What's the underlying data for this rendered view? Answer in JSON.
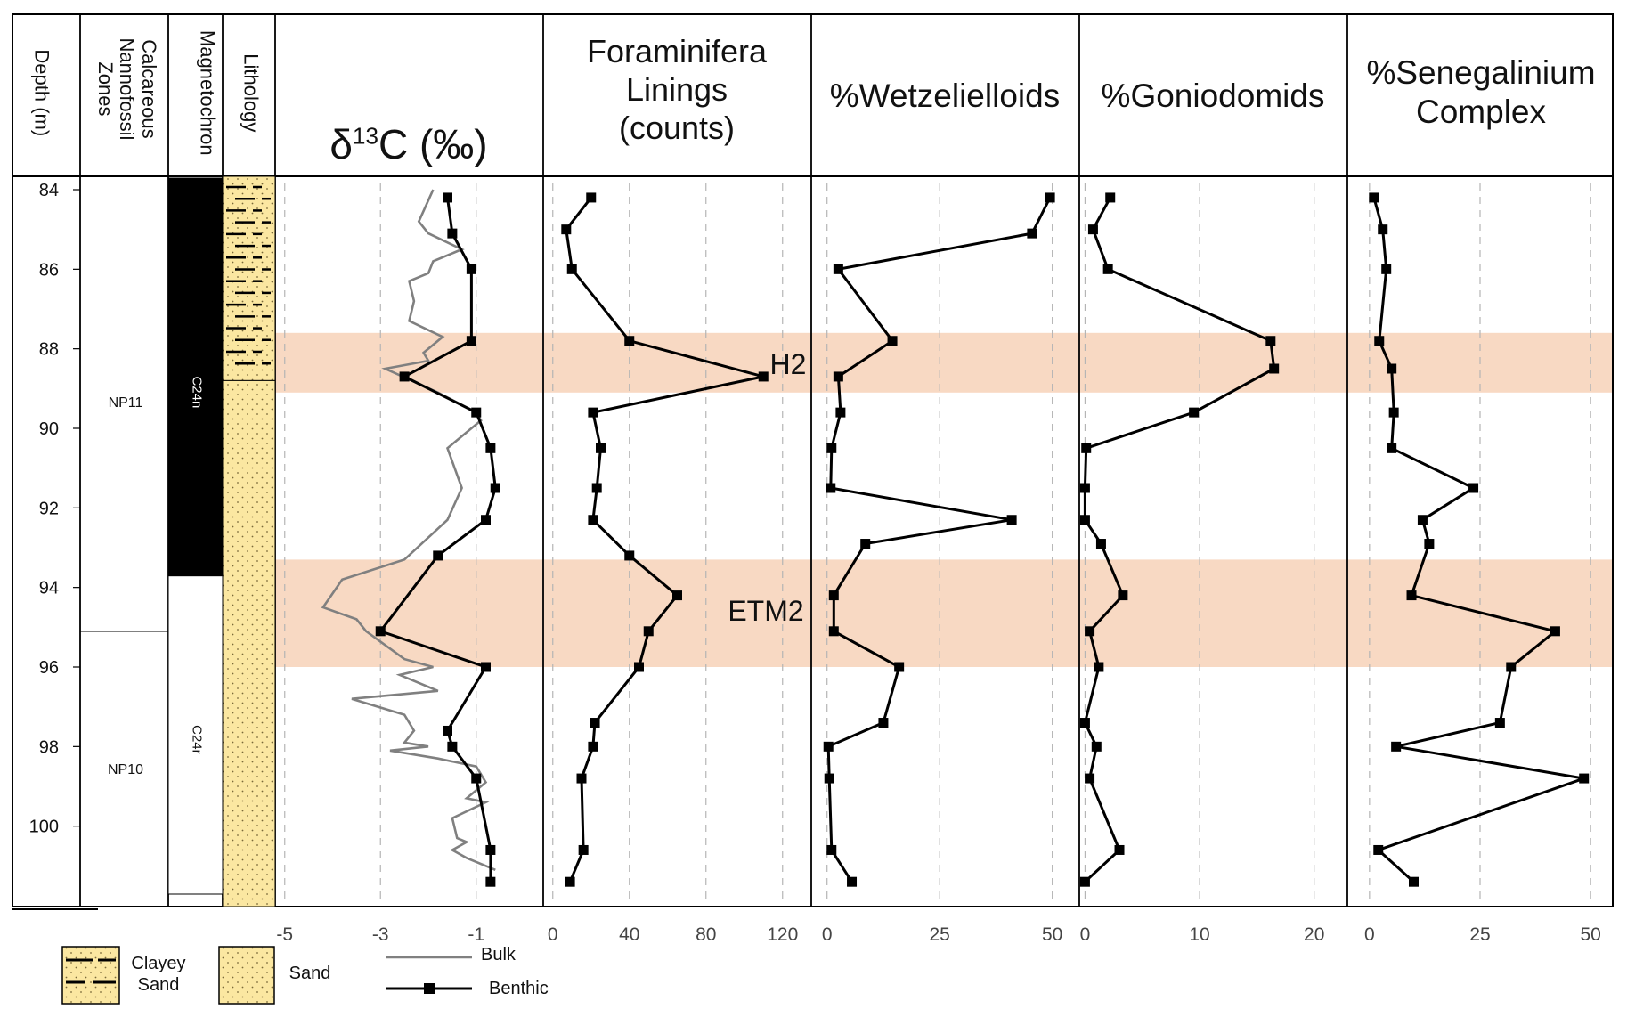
{
  "headers": {
    "depth": "Depth (m)",
    "nanno": "Calcareous\nNannofossil\nZones",
    "magneto": "Magnetochron",
    "lithology": "Lithology",
    "d13c_base": "δ",
    "d13c_sup": "13",
    "d13c_rest": "C (‰)",
    "foram": "Foraminifera\nLinings\n(counts)",
    "wetz": "%Wetzelielloids",
    "gonio": "%Goniodomids",
    "sene": "%Senegalinium\nComplex"
  },
  "depth_axis": {
    "min": 84,
    "max": 102,
    "ticks": [
      "84",
      "86",
      "88",
      "90",
      "92",
      "94",
      "96",
      "98",
      "100"
    ]
  },
  "zones": [
    {
      "label": "NP11",
      "top": 84,
      "bottom": 95.1
    },
    {
      "label": "NP10",
      "top": 95.1,
      "bottom": 102
    }
  ],
  "chrons": [
    {
      "label": "C24n",
      "top": 84,
      "bottom": 94.0,
      "fill": "#000000"
    },
    {
      "label": "C24r",
      "top": 94.0,
      "bottom": 102,
      "fill": "#ffffff"
    }
  ],
  "lithology": [
    {
      "type": "clayey-sand",
      "top": 84,
      "bottom": 88.8
    },
    {
      "type": "sand",
      "top": 88.8,
      "bottom": 102
    }
  ],
  "events": [
    {
      "label": "H2",
      "top": 87.6,
      "bottom": 89.1,
      "color": "#f8d9c3"
    },
    {
      "label": "ETM2",
      "top": 93.3,
      "bottom": 96.0,
      "color": "#f8d9c3"
    }
  ],
  "legend": {
    "clayey_sand": "Clayey\nSand",
    "sand": "Sand",
    "bulk": "Bulk",
    "benthic": "Benthic"
  },
  "colors": {
    "bulk": "#808080",
    "benthic": "#000000",
    "sand": "#fbe7a1",
    "band": "#f8d9c3"
  },
  "chart_data": [
    {
      "type": "line",
      "title": "δ13C (‰)",
      "xlim": [
        -5.2,
        0.4
      ],
      "xticks": [
        "-5",
        "-3",
        "-1"
      ],
      "xtick_values": [
        -5,
        -3,
        -1
      ],
      "series": [
        {
          "name": "Bulk",
          "points": [
            [
              -1.9,
              84.0
            ],
            [
              -2.2,
              84.8
            ],
            [
              -2.0,
              85.1
            ],
            [
              -1.3,
              85.5
            ],
            [
              -1.9,
              85.8
            ],
            [
              -2.0,
              86.1
            ],
            [
              -2.4,
              86.3
            ],
            [
              -2.3,
              86.8
            ],
            [
              -2.4,
              87.3
            ],
            [
              -1.7,
              87.7
            ],
            [
              -2.1,
              88.1
            ],
            [
              -2.0,
              88.3
            ],
            [
              -2.9,
              88.5
            ],
            [
              -1.8,
              89.1
            ],
            [
              -1.0,
              89.6
            ],
            [
              -0.9,
              89.8
            ],
            [
              -1.6,
              90.5
            ],
            [
              -1.3,
              91.5
            ],
            [
              -1.6,
              92.3
            ],
            [
              -2.5,
              93.3
            ],
            [
              -3.8,
              93.8
            ],
            [
              -4.2,
              94.5
            ],
            [
              -3.5,
              94.8
            ],
            [
              -3.3,
              95.1
            ],
            [
              -2.5,
              95.8
            ],
            [
              -1.9,
              96.0
            ],
            [
              -2.6,
              96.2
            ],
            [
              -1.8,
              96.6
            ],
            [
              -3.6,
              96.8
            ],
            [
              -2.5,
              97.2
            ],
            [
              -2.3,
              97.6
            ],
            [
              -2.5,
              97.9
            ],
            [
              -2.0,
              98.0
            ],
            [
              -2.8,
              98.1
            ],
            [
              -1.8,
              98.3
            ],
            [
              -1.0,
              98.5
            ],
            [
              -0.8,
              98.9
            ],
            [
              -1.2,
              99.3
            ],
            [
              -0.8,
              99.4
            ],
            [
              -1.5,
              99.8
            ],
            [
              -1.4,
              100.3
            ],
            [
              -1.2,
              100.4
            ],
            [
              -1.5,
              100.6
            ],
            [
              -1.2,
              100.8
            ],
            [
              -0.6,
              101.1
            ]
          ]
        },
        {
          "name": "Benthic",
          "points": [
            [
              -1.6,
              84.2
            ],
            [
              -1.5,
              85.1
            ],
            [
              -1.1,
              86.0
            ],
            [
              -1.1,
              87.8
            ],
            [
              -2.5,
              88.7
            ],
            [
              -1.0,
              89.6
            ],
            [
              -0.7,
              90.5
            ],
            [
              -0.6,
              91.5
            ],
            [
              -0.8,
              92.3
            ],
            [
              -1.8,
              93.2
            ],
            [
              -3.0,
              95.1
            ],
            [
              -0.8,
              96.0
            ],
            [
              -1.6,
              97.6
            ],
            [
              -1.5,
              98.0
            ],
            [
              -1.0,
              98.8
            ],
            [
              -0.7,
              100.6
            ],
            [
              -0.7,
              101.4
            ]
          ]
        }
      ]
    },
    {
      "type": "line",
      "title": "Foraminifera Linings (counts)",
      "xlim": [
        -5,
        135
      ],
      "xticks": [
        "0",
        "40",
        "80",
        "120"
      ],
      "xtick_values": [
        0,
        40,
        80,
        120
      ],
      "series": [
        {
          "name": "Benthic",
          "points": [
            [
              20,
              84.2
            ],
            [
              7,
              85.0
            ],
            [
              10,
              86.0
            ],
            [
              40,
              87.8
            ],
            [
              110,
              88.7
            ],
            [
              21,
              89.6
            ],
            [
              25,
              90.5
            ],
            [
              23,
              91.5
            ],
            [
              21,
              92.3
            ],
            [
              40,
              93.2
            ],
            [
              65,
              94.2
            ],
            [
              50,
              95.1
            ],
            [
              45,
              96.0
            ],
            [
              22,
              97.4
            ],
            [
              21,
              98.0
            ],
            [
              15,
              98.8
            ],
            [
              16,
              100.6
            ],
            [
              9,
              101.4
            ]
          ]
        }
      ]
    },
    {
      "type": "line",
      "title": "%Wetzelielloids",
      "xlim": [
        -3.5,
        56
      ],
      "xticks": [
        "0",
        "25",
        "50"
      ],
      "xtick_values": [
        0,
        25,
        50
      ],
      "series": [
        {
          "name": "Benthic",
          "points": [
            [
              49.5,
              84.2
            ],
            [
              45.5,
              85.1
            ],
            [
              2.5,
              86.0
            ],
            [
              14.5,
              87.8
            ],
            [
              2.5,
              88.7
            ],
            [
              3,
              89.6
            ],
            [
              1,
              90.5
            ],
            [
              0.8,
              91.5
            ],
            [
              41,
              92.3
            ],
            [
              8.5,
              92.9
            ],
            [
              1.5,
              94.2
            ],
            [
              1.5,
              95.1
            ],
            [
              16,
              96.0
            ],
            [
              12.5,
              97.4
            ],
            [
              0.3,
              98.0
            ],
            [
              0.5,
              98.8
            ],
            [
              1,
              100.6
            ],
            [
              5.5,
              101.4
            ]
          ]
        }
      ]
    },
    {
      "type": "line",
      "title": "%Goniodomids",
      "xlim": [
        -0.5,
        22.9
      ],
      "xticks": [
        "0",
        "10",
        "20"
      ],
      "xtick_values": [
        0,
        10,
        20
      ],
      "series": [
        {
          "name": "Benthic",
          "points": [
            [
              2.2,
              84.2
            ],
            [
              0.7,
              85.0
            ],
            [
              2,
              86.0
            ],
            [
              16.2,
              87.8
            ],
            [
              16.5,
              88.5
            ],
            [
              9.5,
              89.6
            ],
            [
              0.1,
              90.5
            ],
            [
              0,
              91.5
            ],
            [
              0,
              92.3
            ],
            [
              1.4,
              92.9
            ],
            [
              3.3,
              94.2
            ],
            [
              0.4,
              95.1
            ],
            [
              1.2,
              96.0
            ],
            [
              0,
              97.4
            ],
            [
              1,
              98.0
            ],
            [
              0.4,
              98.8
            ],
            [
              3,
              100.6
            ],
            [
              0,
              101.4
            ]
          ]
        }
      ]
    },
    {
      "type": "line",
      "title": "%Senegalinium Complex",
      "xlim": [
        -5,
        55
      ],
      "xticks": [
        "0",
        "25",
        "50"
      ],
      "xtick_values": [
        0,
        25,
        50
      ],
      "series": [
        {
          "name": "Benthic",
          "points": [
            [
              1,
              84.2
            ],
            [
              3,
              85.0
            ],
            [
              3.8,
              86.0
            ],
            [
              2.2,
              87.8
            ],
            [
              5,
              88.5
            ],
            [
              5.5,
              89.6
            ],
            [
              5,
              90.5
            ],
            [
              23.5,
              91.5
            ],
            [
              12,
              92.3
            ],
            [
              13.5,
              92.9
            ],
            [
              9.5,
              94.2
            ],
            [
              42,
              95.1
            ],
            [
              32,
              96.0
            ],
            [
              29.5,
              97.4
            ],
            [
              6,
              98.0
            ],
            [
              48.5,
              98.8
            ],
            [
              2,
              100.6
            ],
            [
              10,
              101.4
            ]
          ]
        }
      ]
    }
  ]
}
